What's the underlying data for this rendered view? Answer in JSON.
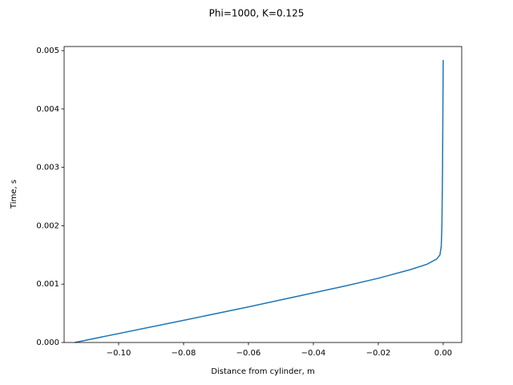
{
  "chart_data": {
    "type": "line",
    "title": "Phi=1000, K=0.125",
    "xlabel": "Distance from cylinder, m",
    "ylabel": "Time, s",
    "x": [
      -0.1135,
      -0.08,
      -0.06,
      -0.04,
      -0.03,
      -0.02,
      -0.01,
      -0.005,
      -0.002,
      -0.001,
      -0.0006,
      -0.0004,
      -0.0002,
      0
    ],
    "values": [
      0,
      0.00038,
      0.00061,
      0.00085,
      0.00097,
      0.0011,
      0.00125,
      0.00134,
      0.00143,
      0.0015,
      0.00165,
      0.002,
      0.003,
      0.00484
    ],
    "color": "#1f77b4",
    "xlim": [
      -0.1168,
      0.0057
    ],
    "ylim": [
      0,
      0.00507
    ],
    "xticks": [
      {
        "value": -0.1,
        "label": "−0.10"
      },
      {
        "value": -0.08,
        "label": "−0.08"
      },
      {
        "value": -0.06,
        "label": "−0.06"
      },
      {
        "value": -0.04,
        "label": "−0.04"
      },
      {
        "value": -0.02,
        "label": "−0.02"
      },
      {
        "value": 0,
        "label": "0.00"
      }
    ],
    "yticks": [
      {
        "value": 0,
        "label": "0.000"
      },
      {
        "value": 0.001,
        "label": "0.001"
      },
      {
        "value": 0.002,
        "label": "0.002"
      },
      {
        "value": 0.003,
        "label": "0.003"
      },
      {
        "value": 0.004,
        "label": "0.004"
      },
      {
        "value": 0.005,
        "label": "0.005"
      }
    ],
    "grid": false
  }
}
